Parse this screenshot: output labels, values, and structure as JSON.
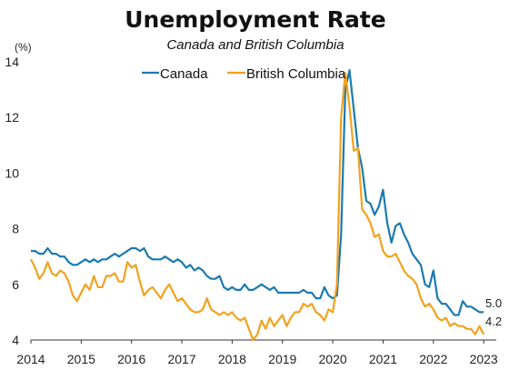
{
  "colors": {
    "canada": "#1a7ab0",
    "bc": "#f2a21e",
    "axis": "#333333"
  },
  "chart_data": {
    "type": "line",
    "title": "Unemployment Rate",
    "subtitle": "Canada and British Columbia",
    "y_unit": "(%)",
    "xlim": [
      2014,
      2023.25
    ],
    "ylim": [
      4,
      14
    ],
    "x_ticks": [
      2014,
      2015,
      2016,
      2017,
      2018,
      2019,
      2020,
      2021,
      2022,
      2023
    ],
    "x_tick_labels": [
      "2014",
      "2015",
      "2016",
      "2017",
      "2018",
      "2019",
      "2020",
      "2021",
      "2022",
      "2023"
    ],
    "y_ticks": [
      4,
      6,
      8,
      10,
      12,
      14
    ],
    "y_tick_labels": [
      "4",
      "6",
      "8",
      "10",
      "12",
      "14"
    ],
    "grid": false,
    "legend_position": "top",
    "end_labels": [
      "5.0",
      "4.2"
    ],
    "series": [
      {
        "name": "Canada",
        "color": "#1a7ab0",
        "x_start": 2014,
        "step": 0.08333,
        "values": [
          7.2,
          7.2,
          7.1,
          7.1,
          7.3,
          7.1,
          7.1,
          7.0,
          7.0,
          6.8,
          6.7,
          6.7,
          6.8,
          6.9,
          6.8,
          6.9,
          6.8,
          6.9,
          6.9,
          7.0,
          7.1,
          7.0,
          7.1,
          7.2,
          7.3,
          7.3,
          7.2,
          7.3,
          7.0,
          6.9,
          6.9,
          6.9,
          7.0,
          6.9,
          6.8,
          6.9,
          6.8,
          6.6,
          6.7,
          6.5,
          6.6,
          6.5,
          6.3,
          6.2,
          6.2,
          6.3,
          5.9,
          5.8,
          5.9,
          5.8,
          5.8,
          6.0,
          5.8,
          5.8,
          5.9,
          6.0,
          5.9,
          5.8,
          5.9,
          5.7,
          5.7,
          5.7,
          5.7,
          5.7,
          5.7,
          5.8,
          5.7,
          5.7,
          5.5,
          5.5,
          5.9,
          5.6,
          5.5,
          5.6,
          7.8,
          13.0,
          13.7,
          12.3,
          10.9,
          10.2,
          9.0,
          8.9,
          8.5,
          8.8,
          9.4,
          8.2,
          7.5,
          8.1,
          8.2,
          7.8,
          7.5,
          7.1,
          6.9,
          6.7,
          6.0,
          5.9,
          6.5,
          5.5,
          5.3,
          5.3,
          5.1,
          4.9,
          4.9,
          5.4,
          5.2,
          5.2,
          5.1,
          5.0,
          5.0
        ]
      },
      {
        "name": "British Columbia",
        "color": "#f2a21e",
        "x_start": 2014,
        "step": 0.08333,
        "values": [
          6.9,
          6.6,
          6.2,
          6.4,
          6.8,
          6.4,
          6.3,
          6.5,
          6.4,
          6.1,
          5.6,
          5.4,
          5.7,
          6.0,
          5.8,
          6.3,
          5.9,
          5.9,
          6.3,
          6.3,
          6.4,
          6.1,
          6.1,
          6.8,
          6.6,
          6.7,
          6.1,
          5.6,
          5.8,
          5.9,
          5.7,
          5.5,
          5.8,
          6.0,
          5.7,
          5.4,
          5.5,
          5.3,
          5.1,
          5.0,
          5.0,
          5.1,
          5.5,
          5.1,
          5.0,
          4.9,
          5.0,
          4.9,
          5.0,
          4.8,
          4.7,
          4.8,
          4.4,
          4.0,
          4.2,
          4.7,
          4.4,
          4.8,
          4.5,
          4.7,
          4.9,
          4.5,
          4.8,
          5.0,
          5.0,
          5.3,
          5.2,
          5.3,
          5.0,
          4.9,
          4.7,
          5.1,
          5.0,
          6.0,
          12.0,
          13.6,
          12.4,
          10.8,
          10.9,
          8.7,
          8.5,
          8.2,
          7.7,
          7.8,
          7.2,
          7.0,
          7.0,
          7.1,
          6.8,
          6.5,
          6.3,
          6.2,
          6.0,
          5.5,
          5.2,
          5.3,
          5.1,
          4.8,
          4.7,
          4.8,
          4.5,
          4.6,
          4.5,
          4.5,
          4.4,
          4.4,
          4.2,
          4.5,
          4.2
        ]
      }
    ]
  }
}
